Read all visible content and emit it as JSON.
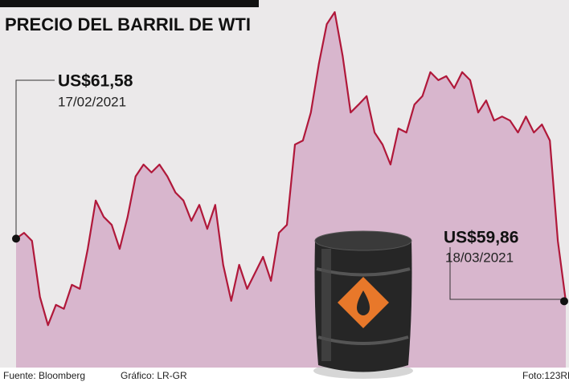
{
  "chart_data": {
    "type": "area",
    "title": "PRECIO DEL BARRIL DE WTI",
    "values": [
      61.58,
      61.74,
      61.52,
      59.98,
      59.2,
      59.76,
      59.65,
      60.31,
      60.2,
      61.3,
      62.63,
      62.18,
      61.96,
      61.3,
      62.18,
      63.29,
      63.62,
      63.4,
      63.62,
      63.29,
      62.85,
      62.63,
      62.07,
      62.51,
      61.85,
      62.51,
      60.86,
      59.87,
      60.86,
      60.2,
      60.64,
      61.08,
      60.42,
      61.74,
      61.96,
      64.17,
      64.28,
      65.05,
      66.38,
      67.48,
      67.81,
      66.6,
      65.05,
      65.27,
      65.5,
      64.5,
      64.17,
      63.62,
      64.61,
      64.5,
      65.27,
      65.5,
      66.16,
      65.94,
      66.05,
      65.72,
      66.16,
      65.94,
      65.05,
      65.38,
      64.83,
      64.94,
      64.83,
      64.5,
      64.94,
      64.5,
      64.72,
      64.28,
      61.52,
      59.86
    ],
    "ylim": [
      58.3,
      68.1
    ],
    "line_color": "#b0183a",
    "fill_color": "#d8b6cd",
    "annotations": [
      {
        "label": "US$61,58",
        "date": "17/02/2021"
      },
      {
        "label": "US$59,86",
        "date": "18/03/2021"
      }
    ],
    "source": "Fuente: Bloomberg",
    "credit": "Gráfico: LR-GR",
    "photo": "Foto:123RF"
  }
}
